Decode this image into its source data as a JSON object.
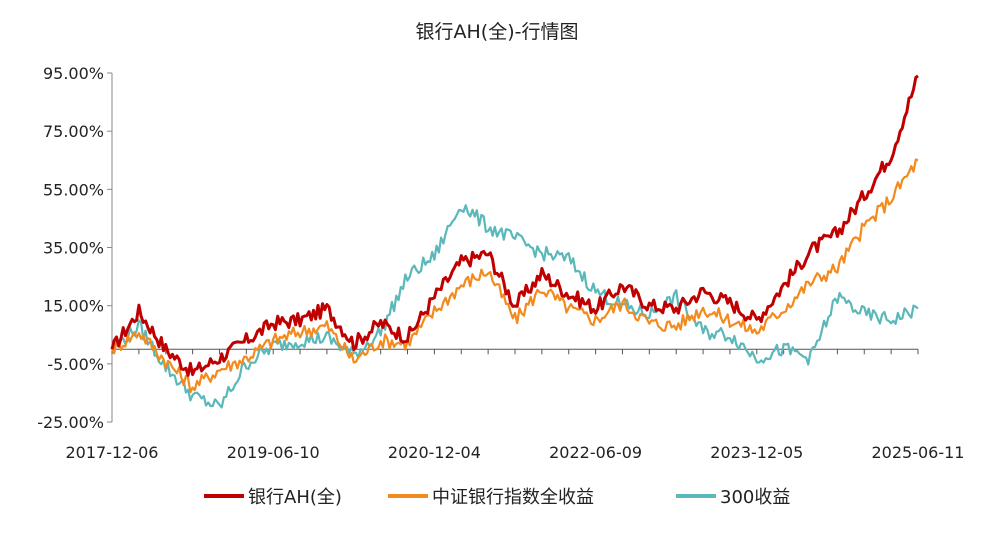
{
  "chart_data": {
    "type": "line",
    "title": "银行AH(全)-行情图",
    "xlabel": "",
    "ylabel": "",
    "y_tick_labels": [
      "95.00%",
      "75.00%",
      "55.00%",
      "35.00%",
      "15.00%",
      "-5.00%",
      "-25.00%"
    ],
    "x_tick_labels": [
      "2017-12-06",
      "2019-06-10",
      "2020-12-04",
      "2022-06-09",
      "2023-12-05",
      "2025-06-11"
    ],
    "ylim": [
      -25,
      95
    ],
    "grid": false,
    "legend_position": "bottom",
    "x": [
      "2017-12-06",
      "2018-03",
      "2018-06",
      "2018-09",
      "2018-12",
      "2019-03",
      "2019-06-10",
      "2019-09",
      "2019-12",
      "2020-03",
      "2020-06",
      "2020-09",
      "2020-12-04",
      "2021-03",
      "2021-06",
      "2021-09",
      "2021-12",
      "2022-03",
      "2022-06-09",
      "2022-09",
      "2022-12",
      "2023-03",
      "2023-06",
      "2023-09",
      "2023-12-05",
      "2024-03",
      "2024-06",
      "2024-09",
      "2024-12",
      "2025-03",
      "2025-06-11"
    ],
    "series": [
      {
        "name": "银行AH(全)",
        "color": "#C00000",
        "values": [
          0,
          13,
          0,
          -8,
          -3,
          3,
          9,
          10,
          14,
          2,
          9,
          4,
          18,
          30,
          33,
          15,
          26,
          19,
          14,
          22,
          15,
          14,
          20,
          16,
          10,
          22,
          34,
          40,
          53,
          67,
          94
        ]
      },
      {
        "name": "中证银行指数全收益",
        "color": "#F28A1E",
        "values": [
          0,
          6,
          -4,
          -13,
          -7,
          -3,
          3,
          6,
          8,
          -4,
          3,
          2,
          13,
          22,
          27,
          10,
          21,
          14,
          10,
          16,
          9,
          8,
          14,
          10,
          6,
          14,
          23,
          28,
          42,
          52,
          65
        ]
      },
      {
        "name": "300收益",
        "color": "#5BB8BA",
        "values": [
          0,
          8,
          -6,
          -16,
          -20,
          -5,
          1,
          3,
          4,
          -2,
          6,
          25,
          32,
          50,
          42,
          38,
          33,
          31,
          20,
          15,
          12,
          18,
          6,
          5,
          -3,
          0,
          -3,
          18,
          12,
          10,
          14
        ]
      }
    ]
  }
}
